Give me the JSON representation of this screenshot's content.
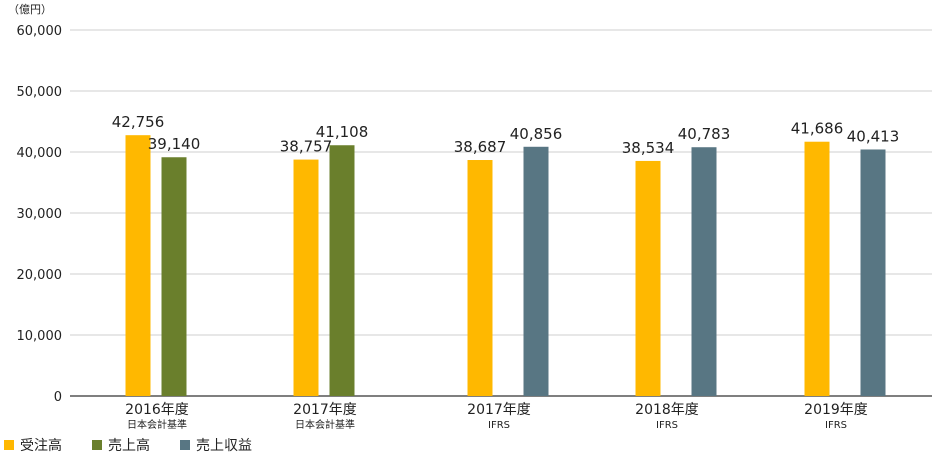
{
  "chart_data": {
    "type": "bar",
    "unit_label": "（億円）",
    "y_ticks": [
      "0",
      "10,000",
      "20,000",
      "30,000",
      "40,000",
      "50,000",
      "60,000"
    ],
    "ylim": [
      0,
      60000
    ],
    "grid": true,
    "legend_position": "bottom-left",
    "categories": [
      {
        "main": "2016年度",
        "sub": "日本会計基準"
      },
      {
        "main": "2017年度",
        "sub": "日本会計基準"
      },
      {
        "main": "2017年度",
        "sub": "IFRS"
      },
      {
        "main": "2018年度",
        "sub": "IFRS"
      },
      {
        "main": "2019年度",
        "sub": "IFRS"
      }
    ],
    "series": [
      {
        "name": "受注高",
        "color": "#ffb800",
        "values": [
          42756,
          38757,
          38687,
          38534,
          41686
        ],
        "labels": [
          "42,756",
          "38,757",
          "38,687",
          "38,534",
          "41,686"
        ]
      },
      {
        "name": "売上高",
        "color": "#6a7f2c",
        "values": [
          39140,
          41108,
          null,
          null,
          null
        ],
        "labels": [
          "39,140",
          "41,108",
          "",
          "",
          ""
        ]
      },
      {
        "name": "売上収益",
        "color": "#587683",
        "values": [
          null,
          null,
          40856,
          40783,
          40413
        ],
        "labels": [
          "",
          "",
          "40,856",
          "40,783",
          "40,413"
        ]
      }
    ]
  }
}
